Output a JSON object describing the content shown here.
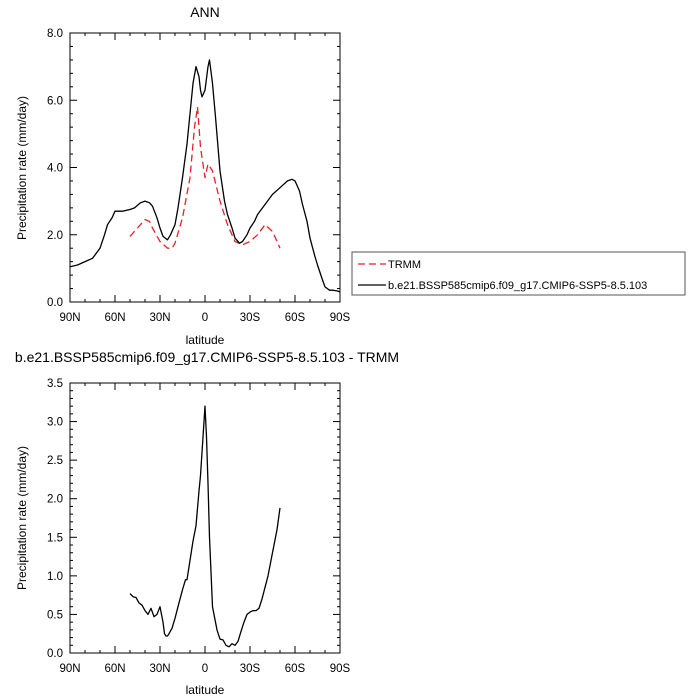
{
  "chart_data": [
    {
      "type": "line",
      "title": "ANN",
      "xlabel": "latitude",
      "ylabel": "Precipitation rate (mm/day)",
      "xlim": [
        90,
        -90
      ],
      "ylim": [
        0,
        8
      ],
      "x_ticks": [
        90,
        60,
        30,
        0,
        -30,
        -60,
        -90
      ],
      "x_tick_labels": [
        "90N",
        "60N",
        "30N",
        "0",
        "30S",
        "60S",
        "90S"
      ],
      "y_ticks": [
        0,
        2,
        4,
        6,
        8
      ],
      "y_tick_labels": [
        "0.0",
        "2.0",
        "4.0",
        "6.0",
        "8.0"
      ],
      "legend_position": "right",
      "series": [
        {
          "name": "TRMM",
          "color": "#e8202a",
          "dash": "dashed",
          "x": [
            50,
            45,
            40,
            37,
            35,
            30,
            25,
            22,
            20,
            15,
            10,
            7,
            5,
            3,
            0,
            -2,
            -5,
            -10,
            -15,
            -20,
            -25,
            -30,
            -35,
            -40,
            -45,
            -50
          ],
          "y": [
            1.95,
            2.2,
            2.45,
            2.4,
            2.2,
            1.8,
            1.6,
            1.6,
            1.75,
            2.5,
            3.7,
            5.2,
            5.8,
            4.6,
            3.7,
            4.1,
            3.9,
            3.0,
            2.3,
            1.8,
            1.7,
            1.8,
            2.0,
            2.3,
            2.1,
            1.6
          ]
        },
        {
          "name": "b.e21.BSSP585cmip6.f09_g17.CMIP6-SSP5-8.5.103",
          "color": "#000000",
          "dash": "solid",
          "x": [
            90,
            85,
            80,
            75,
            70,
            67,
            65,
            62,
            60,
            55,
            50,
            47,
            43,
            40,
            37,
            35,
            32,
            30,
            28,
            25,
            23,
            20,
            18,
            15,
            12,
            10,
            8,
            6,
            4,
            3,
            2,
            0,
            -2,
            -3,
            -5,
            -7,
            -10,
            -13,
            -15,
            -18,
            -20,
            -23,
            -25,
            -28,
            -30,
            -33,
            -35,
            -40,
            -45,
            -50,
            -55,
            -58,
            -60,
            -63,
            -65,
            -68,
            -70,
            -73,
            -75,
            -78,
            -80,
            -83,
            -85,
            -88,
            -90
          ],
          "y": [
            1.05,
            1.1,
            1.2,
            1.3,
            1.6,
            2.0,
            2.3,
            2.5,
            2.7,
            2.7,
            2.75,
            2.8,
            2.95,
            3.0,
            2.95,
            2.85,
            2.5,
            2.2,
            1.95,
            1.85,
            2.0,
            2.3,
            2.8,
            3.7,
            4.7,
            5.6,
            6.5,
            7.0,
            6.7,
            6.3,
            6.1,
            6.3,
            7.0,
            7.2,
            6.5,
            5.5,
            3.9,
            3.0,
            2.6,
            2.2,
            1.9,
            1.75,
            1.8,
            2.0,
            2.2,
            2.4,
            2.6,
            2.9,
            3.2,
            3.4,
            3.6,
            3.65,
            3.6,
            3.3,
            2.9,
            2.4,
            1.9,
            1.4,
            1.1,
            0.7,
            0.45,
            0.35,
            0.35,
            0.33,
            0.3
          ]
        }
      ]
    },
    {
      "type": "line",
      "title": "b.e21.BSSP585cmip6.f09_g17.CMIP6-SSP5-8.5.103 - TRMM",
      "xlabel": "latitude",
      "ylabel": "Precipitation rate (mm/day)",
      "xlim": [
        90,
        -90
      ],
      "ylim": [
        0,
        3.5
      ],
      "x_ticks": [
        90,
        60,
        30,
        0,
        -30,
        -60,
        -90
      ],
      "x_tick_labels": [
        "90N",
        "60N",
        "30N",
        "0",
        "30S",
        "60S",
        "90S"
      ],
      "y_ticks": [
        0,
        0.5,
        1,
        1.5,
        2,
        2.5,
        3,
        3.5
      ],
      "y_tick_labels": [
        "0.0",
        "0.5",
        "1.0",
        "1.5",
        "2.0",
        "2.5",
        "3.0",
        "3.5"
      ],
      "series": [
        {
          "color": "#000000",
          "dash": "solid",
          "x": [
            50,
            48,
            46,
            44,
            42,
            40,
            38,
            36,
            34,
            32,
            30,
            28,
            27,
            26,
            25,
            24,
            22,
            20,
            18,
            15,
            13,
            12,
            10,
            8,
            6,
            4,
            3,
            2,
            1,
            0,
            -1,
            -2,
            -3,
            -5,
            -8,
            -10,
            -12,
            -14,
            -16,
            -18,
            -20,
            -22,
            -24,
            -26,
            -28,
            -30,
            -32,
            -34,
            -36,
            -38,
            -40,
            -42,
            -44,
            -46,
            -48,
            -50
          ],
          "y": [
            0.77,
            0.73,
            0.72,
            0.65,
            0.62,
            0.55,
            0.5,
            0.58,
            0.47,
            0.5,
            0.6,
            0.4,
            0.25,
            0.22,
            0.22,
            0.25,
            0.32,
            0.45,
            0.6,
            0.82,
            0.95,
            0.95,
            1.2,
            1.45,
            1.65,
            2.1,
            2.3,
            2.6,
            2.9,
            3.2,
            2.8,
            2.2,
            1.5,
            0.6,
            0.3,
            0.18,
            0.17,
            0.1,
            0.08,
            0.12,
            0.1,
            0.15,
            0.28,
            0.4,
            0.5,
            0.53,
            0.55,
            0.55,
            0.58,
            0.7,
            0.85,
            1.0,
            1.2,
            1.4,
            1.6,
            1.88
          ]
        }
      ]
    }
  ]
}
